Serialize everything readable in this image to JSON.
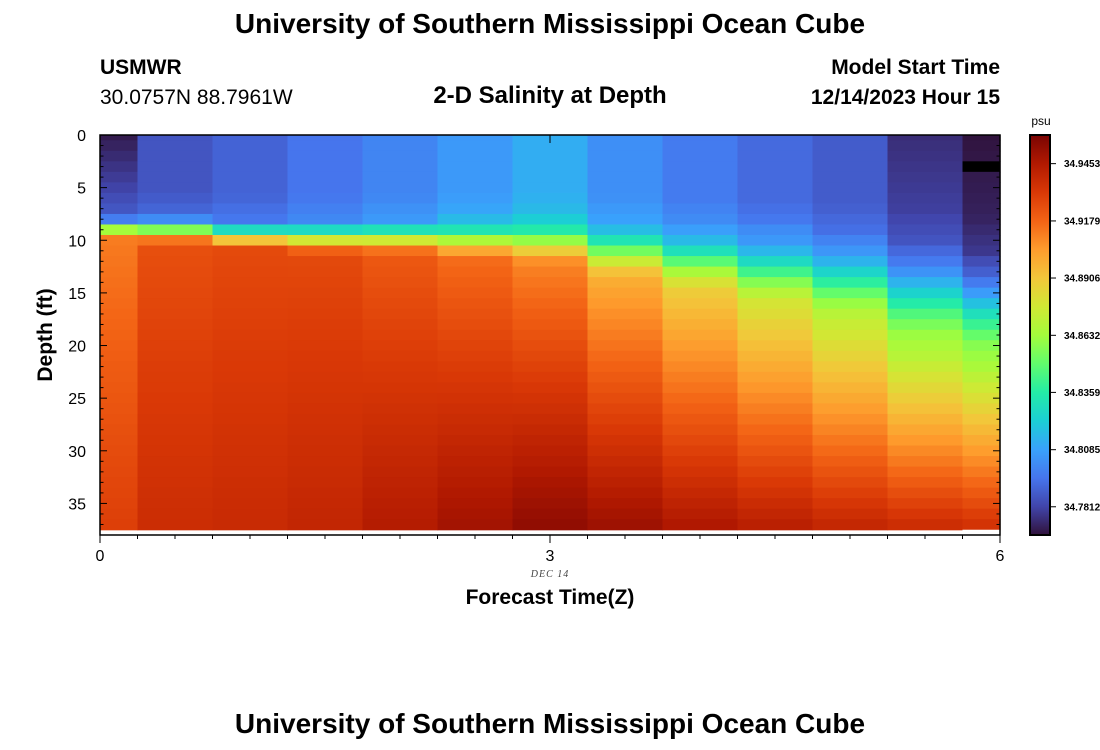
{
  "header": {
    "title": "University of Southern Mississippi Ocean Cube",
    "station": "USMWR",
    "coordinates": "30.0757N  88.7961W",
    "subtitle": "2-D Salinity at Depth",
    "start_label": "Model Start Time",
    "start_value": "12/14/2023 Hour 15"
  },
  "footer": {
    "title": "University of Southern Mississippi Ocean Cube"
  },
  "colors": {
    "colormap": [
      "#30123b",
      "#4145ab",
      "#4675ed",
      "#39a2fc",
      "#1bcfd4",
      "#24eca6",
      "#61fc6c",
      "#a4fc3b",
      "#d1e834",
      "#f3c63a",
      "#fe9b2d",
      "#f36315",
      "#d93806",
      "#b11901",
      "#7a0403"
    ],
    "missing": "#000000",
    "land": "#ffffff"
  },
  "chart_data": {
    "type": "heatmap",
    "xlabel": "Forecast Time(Z)",
    "ylabel": "Depth (ft)",
    "xlim": [
      0,
      6
    ],
    "ylim": [
      38,
      0
    ],
    "x_ticks": [
      "0",
      "3",
      "6"
    ],
    "y_ticks": [
      "0",
      "5",
      "10",
      "15",
      "20",
      "25",
      "30",
      "35"
    ],
    "y_tick_values": [
      0,
      5,
      10,
      15,
      20,
      25,
      30,
      35
    ],
    "date_label": "DEC 14",
    "date_value": 3,
    "colorbar": {
      "unit": "psu",
      "min": 34.7677,
      "max": 34.959,
      "ticks": [
        "34.9453",
        "34.9179",
        "34.8906",
        "34.8632",
        "34.8359",
        "34.8085",
        "34.7812"
      ],
      "tick_values": [
        34.9453,
        34.9179,
        34.8906,
        34.8632,
        34.8359,
        34.8085,
        34.7812
      ]
    },
    "time_columns": [
      0,
      0.5,
      1,
      1.5,
      2,
      2.5,
      3,
      3.5,
      4,
      4.5,
      5,
      5.5,
      6
    ],
    "depth_rows_ft": [
      0,
      1,
      2,
      3,
      4,
      5,
      6,
      7,
      8,
      9,
      10,
      11,
      12,
      13,
      14,
      15,
      16,
      17,
      18,
      19,
      20,
      21,
      22,
      23,
      24,
      25,
      26,
      27,
      28,
      29,
      30,
      31,
      32,
      33,
      34,
      35,
      36,
      37
    ],
    "profiles": [
      {
        "time": 0,
        "mix": 8,
        "trans": 2,
        "surf": 34.77,
        "peak": 34.912,
        "deep": 34.93,
        "surf_mid": 34.782
      },
      {
        "time": 0.5,
        "mix": 8,
        "trans": 2.5,
        "surf": 34.786,
        "peak": 34.924,
        "deep": 34.937,
        "surf_mid": 34.786
      },
      {
        "time": 1,
        "mix": 8.5,
        "trans": 2.5,
        "surf": 34.79,
        "peak": 34.926,
        "deep": 34.938,
        "surf_mid": 34.79
      },
      {
        "time": 1.5,
        "mix": 8.5,
        "trans": 3,
        "surf": 34.795,
        "peak": 34.926,
        "deep": 34.94,
        "surf_mid": 34.795
      },
      {
        "time": 2,
        "mix": 8.5,
        "trans": 3,
        "surf": 34.8,
        "peak": 34.921,
        "deep": 34.945,
        "surf_mid": 34.8
      },
      {
        "time": 2.5,
        "mix": 8.5,
        "trans": 3.5,
        "surf": 34.806,
        "peak": 34.916,
        "deep": 34.95,
        "surf_mid": 34.806
      },
      {
        "time": 3,
        "mix": 8.5,
        "trans": 4,
        "surf": 34.812,
        "peak": 34.91,
        "deep": 34.955,
        "surf_mid": 34.812
      },
      {
        "time": 3.5,
        "mix": 9,
        "trans": 5,
        "surf": 34.803,
        "peak": 34.899,
        "deep": 34.952,
        "surf_mid": 34.803
      },
      {
        "time": 4,
        "mix": 9.5,
        "trans": 6,
        "surf": 34.797,
        "peak": 34.89,
        "deep": 34.948,
        "surf_mid": 34.797
      },
      {
        "time": 4.5,
        "mix": 10,
        "trans": 7,
        "surf": 34.792,
        "peak": 34.882,
        "deep": 34.945,
        "surf_mid": 34.792
      },
      {
        "time": 5,
        "mix": 10.5,
        "trans": 8,
        "surf": 34.788,
        "peak": 34.875,
        "deep": 34.942,
        "surf_mid": 34.788
      },
      {
        "time": 5.5,
        "mix": 11.5,
        "trans": 9,
        "surf": 34.775,
        "peak": 34.866,
        "deep": 34.94,
        "surf_mid": 34.78
      },
      {
        "time": 6,
        "mix": 12.5,
        "trans": 9,
        "surf": 34.768,
        "peak": 34.862,
        "deep": 34.938,
        "surf_mid": 34.772
      }
    ],
    "missing_cell": {
      "time": 6,
      "depth_from": 2.5,
      "depth_to": 3.5
    },
    "land_cell": {
      "time": 6,
      "depth_from": 37.5,
      "depth_to": 38
    }
  }
}
